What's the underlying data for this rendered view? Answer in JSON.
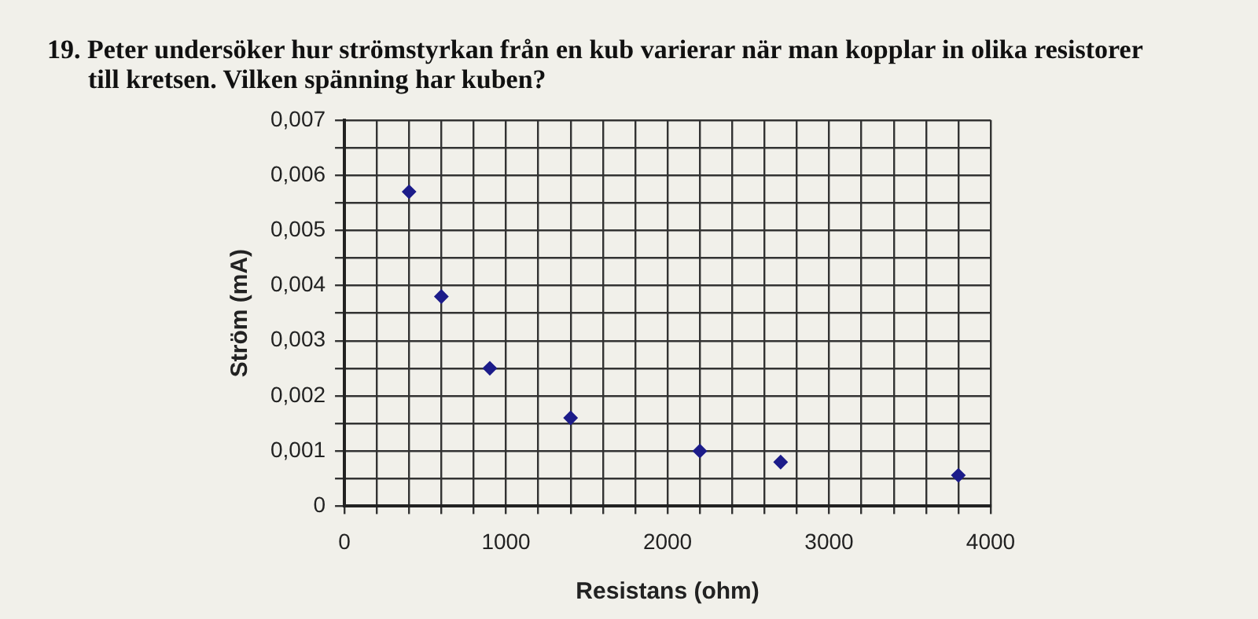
{
  "chart_data": {
    "type": "scatter",
    "title": "19. Peter undersöker hur strömstyrkan från en kub varierar när man kopplar in olika resistorer till kretsen. Vilken spänning har kuben?",
    "xlabel": "Resistans (ohm)",
    "ylabel": "Ström (mA)",
    "x": [
      400,
      600,
      900,
      1400,
      2200,
      2700,
      3800
    ],
    "series": [
      {
        "color": "#1c1c8a",
        "values": [
          0.0057,
          0.0038,
          0.0025,
          0.0016,
          0.001,
          0.0008,
          0.00056
        ]
      }
    ],
    "xlim": [
      0,
      4000
    ],
    "xticks": [
      0,
      {
        "value": 200,
        "label": null
      },
      {
        "value": 400,
        "label": null
      },
      {
        "value": 600,
        "label": null
      },
      {
        "value": 800,
        "label": null
      },
      1000,
      {
        "value": 1200,
        "label": null
      },
      {
        "value": 1400,
        "label": null
      },
      {
        "value": 1600,
        "label": null
      },
      {
        "value": 1800,
        "label": null
      },
      2000,
      {
        "value": 2200,
        "label": null
      },
      {
        "value": 2400,
        "label": null
      },
      {
        "value": 2600,
        "label": null
      },
      {
        "value": 2800,
        "label": null
      },
      3000,
      {
        "value": 3200,
        "label": null
      },
      {
        "value": 3400,
        "label": null
      },
      {
        "value": 3600,
        "label": null
      },
      {
        "value": 3800,
        "label": null
      },
      4000
    ],
    "ylim": [
      0,
      0.007
    ],
    "yticks": [
      0,
      {
        "value": 0.0005,
        "label": null
      },
      {
        "value": 0.001,
        "label": "0,001"
      },
      {
        "value": 0.0015,
        "label": null
      },
      {
        "value": 0.002,
        "label": "0,002"
      },
      {
        "value": 0.0025,
        "label": null
      },
      {
        "value": 0.003,
        "label": "0,003"
      },
      {
        "value": 0.0035,
        "label": null
      },
      {
        "value": 0.004,
        "label": "0,004"
      },
      {
        "value": 0.0045,
        "label": null
      },
      {
        "value": 0.005,
        "label": "0,005"
      },
      {
        "value": 0.0055,
        "label": null
      },
      {
        "value": 0.006,
        "label": "0,006"
      },
      {
        "value": 0.0065,
        "label": null
      },
      {
        "value": 0.007,
        "label": "0,007"
      }
    ],
    "grid": true,
    "marker": "diamond",
    "legend": false
  }
}
